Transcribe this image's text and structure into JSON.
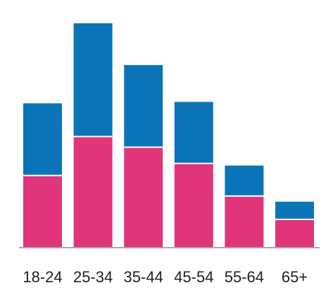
{
  "chart_data": {
    "type": "bar",
    "stacked": true,
    "categories": [
      "18-24",
      "25-34",
      "35-44",
      "45-54",
      "55-64",
      "65+"
    ],
    "series": [
      {
        "color": "#e0357a",
        "values": [
          101,
          156,
          141,
          118,
          72,
          39
        ]
      },
      {
        "color": "#0b74b8",
        "values": [
          102,
          160,
          116,
          87,
          43,
          25
        ]
      }
    ],
    "ylim": [
      0,
      320
    ],
    "grid": false,
    "legend": "none",
    "colors": {
      "axis": "#a8a8a8",
      "separator": "#ffffff",
      "label": "#222222"
    }
  }
}
